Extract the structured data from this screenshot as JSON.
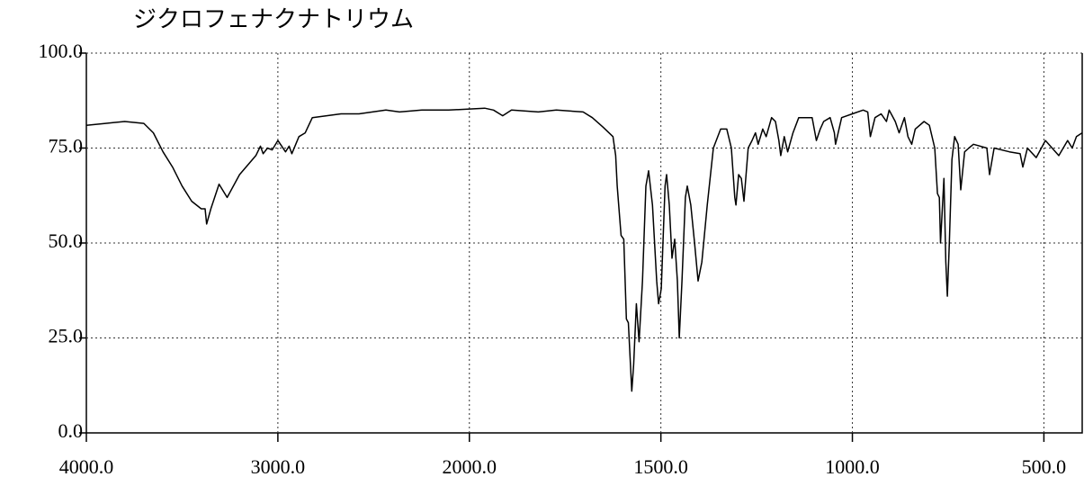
{
  "chart_data": {
    "type": "line",
    "title": "ジクロフェナクナトリウム",
    "xscale": "piecewise",
    "x": [
      4000,
      3900,
      3800,
      3700,
      3650,
      3600,
      3550,
      3500,
      3450,
      3400,
      3380,
      3372,
      3350,
      3307,
      3265,
      3200,
      3115,
      3091,
      3077,
      3054,
      3030,
      3000,
      2960,
      2941,
      2927,
      2890,
      2857,
      2848,
      2820,
      2670,
      2576,
      2436,
      2365,
      2248,
      2108,
      1960,
      1937,
      1913,
      1890,
      1820,
      1773,
      1703,
      1679,
      1651,
      1625,
      1618,
      1614,
      1604,
      1597,
      1590,
      1585,
      1576,
      1571,
      1564,
      1557,
      1548,
      1539,
      1532,
      1522,
      1511,
      1506,
      1499,
      1489,
      1485,
      1478,
      1471,
      1464,
      1457,
      1452,
      1445,
      1436,
      1431,
      1422,
      1412,
      1403,
      1393,
      1379,
      1363,
      1344,
      1328,
      1316,
      1307,
      1304,
      1297,
      1290,
      1283,
      1272,
      1262,
      1253,
      1246,
      1234,
      1225,
      1211,
      1201,
      1192,
      1187,
      1178,
      1169,
      1155,
      1140,
      1105,
      1094,
      1084,
      1075,
      1058,
      1047,
      1044,
      1028,
      1000,
      972,
      960,
      953,
      941,
      925,
      911,
      904,
      888,
      878,
      864,
      855,
      845,
      836,
      813,
      799,
      785,
      778,
      773,
      770,
      761,
      756,
      752,
      747,
      740,
      733,
      724,
      717,
      707,
      696,
      684,
      649,
      642,
      630,
      590,
      562,
      555,
      543,
      520,
      496,
      461,
      438,
      426,
      415,
      400
    ],
    "values": [
      81,
      81.5,
      82,
      81.5,
      79,
      74,
      70,
      65,
      61,
      59,
      59,
      55,
      59,
      65.5,
      62,
      68,
      73,
      75.5,
      73.5,
      75,
      74.5,
      77,
      74,
      75.5,
      73.5,
      78,
      79,
      80,
      83,
      84,
      84,
      85,
      84.5,
      85,
      85,
      85.5,
      85,
      83.5,
      85,
      84.5,
      85,
      84.5,
      83,
      80.5,
      78,
      73,
      65,
      52,
      51,
      30,
      29,
      11,
      18,
      34,
      24,
      40,
      65,
      69,
      60,
      40,
      34,
      38,
      65,
      68,
      60,
      46,
      51,
      40,
      25,
      40,
      62,
      65,
      60,
      50,
      40,
      45,
      60,
      75,
      80,
      80,
      75,
      62,
      60,
      68,
      67,
      61,
      75,
      77,
      79,
      76,
      80,
      78,
      83,
      82,
      77,
      73,
      78,
      74,
      79,
      83,
      83,
      77,
      80,
      82,
      83,
      79,
      76,
      83,
      84,
      85,
      84.5,
      78,
      83,
      84,
      82,
      85,
      82,
      79,
      83,
      78,
      76,
      80,
      82,
      81,
      75,
      63,
      62,
      50,
      67,
      45,
      36,
      50,
      72,
      78,
      76,
      64,
      74,
      75,
      76,
      75,
      68,
      75,
      74,
      73.5,
      70,
      75,
      72.5,
      77,
      73,
      77,
      75,
      78,
      79
    ],
    "color": "#000000",
    "xlim": [
      4000,
      400
    ],
    "xticks": [
      {
        "value": 4000,
        "label": "4000.0"
      },
      {
        "value": 3000,
        "label": "3000.0"
      },
      {
        "value": 2000,
        "label": "2000.0"
      },
      {
        "value": 1500,
        "label": "1500.0"
      },
      {
        "value": 1000,
        "label": "1000.0"
      },
      {
        "value": 500,
        "label": "500.0"
      }
    ],
    "ylim": [
      0,
      100
    ],
    "yticks": [
      {
        "value": 0,
        "label": "0.0"
      },
      {
        "value": 25,
        "label": "25.0"
      },
      {
        "value": 50,
        "label": "50.0"
      },
      {
        "value": 75,
        "label": "75.0"
      },
      {
        "value": 100,
        "label": "100.0"
      }
    ],
    "grid": true
  }
}
